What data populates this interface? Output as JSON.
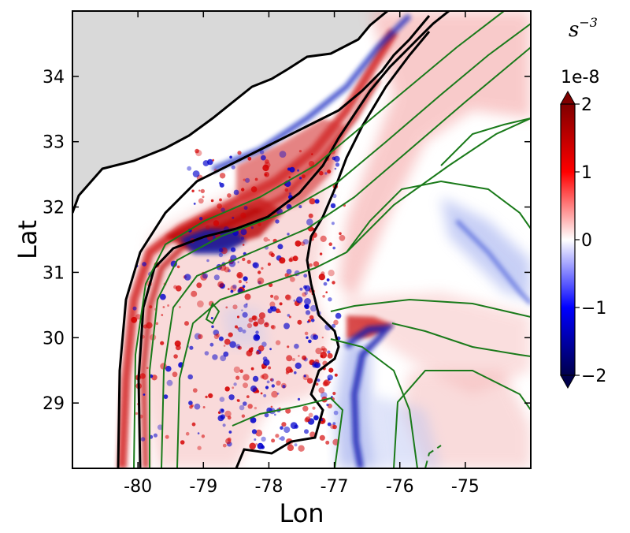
{
  "chart_data": {
    "type": "heatmap",
    "title": "",
    "xlabel": "Lon",
    "ylabel": "Lat",
    "xlim": [
      -81.0,
      -74.0
    ],
    "ylim": [
      28.0,
      35.0
    ],
    "xticks": [
      -80,
      -79,
      -78,
      -77,
      -76,
      -75
    ],
    "xtick_labels": [
      "-80",
      "-79",
      "-78",
      "-77",
      "-76",
      "-75"
    ],
    "yticks": [
      29,
      30,
      31,
      32,
      33,
      34
    ],
    "ytick_labels": [
      "29",
      "30",
      "31",
      "32",
      "33",
      "34"
    ],
    "grid": false,
    "colorbar": {
      "colormap": "seismic",
      "range": [
        -2,
        2
      ],
      "ticks": [
        -2,
        -1,
        0,
        1,
        2
      ],
      "tick_labels": [
        "−2",
        "−1",
        "0",
        "1",
        "2"
      ],
      "scale_label": "1e-8",
      "unit_base": "s",
      "unit_exponent": "−3",
      "extend": "both"
    },
    "colors": {
      "positive": "#d40000",
      "negative": "#0000cc",
      "land": "#d9d9d9",
      "coastline": "#000000",
      "bathymetry_contour": "#000000",
      "overlay_contour": "#1a7a1a"
    }
  }
}
